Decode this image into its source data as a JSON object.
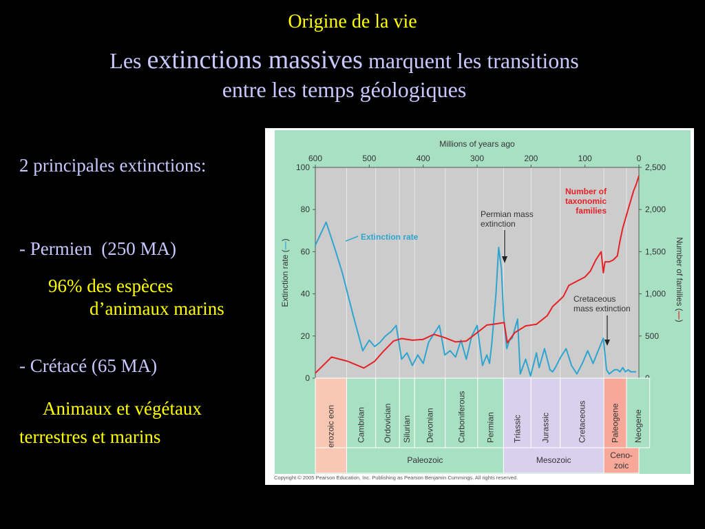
{
  "slide": {
    "kicker": "Origine de la vie",
    "title_part1": "Les ",
    "title_emph": "extinctions massives",
    "title_part2": " marquent les transitions",
    "title_line2": "entre les temps géologiques"
  },
  "left_text": {
    "heading": "2 principales extinctions:",
    "permian_line": "- Permien  (250 MA)",
    "permian_detail1": "96% des espèces",
    "permian_detail2": "d’animaux marins",
    "cretaceous_line": "- Crétacé (65 MA)",
    "cretaceous_detail1": "Animaux et végétaux",
    "cretaceous_detail2": "terrestres et marins"
  },
  "colors": {
    "slide_background": "#000000",
    "title_color": "#c8c8ff",
    "highlight_color": "#ffff00",
    "figure_green": "#a8e0c4",
    "plot_gray": "#cccccc",
    "proterozoic": "#f8c8b4",
    "paleozoic": "#a8e0c4",
    "mesozoic": "#d8d0ec",
    "cenozoic_paleogene": "#f8a898",
    "extinction_line": "#2da5cf",
    "families_line": "#e62025"
  },
  "chart_data": {
    "type": "line",
    "top_axis_label": "Millions of years ago",
    "left_axis_label": "Extinction rate (",
    "right_axis_label": "Number of families (",
    "axis_marker_symbol": "—",
    "axis_close": ")",
    "x_ticks": [
      "600",
      "500",
      "400",
      "300",
      "200",
      "100",
      "0"
    ],
    "x_tick_values": [
      600,
      500,
      400,
      300,
      200,
      100,
      0
    ],
    "x_range": [
      600,
      0
    ],
    "left_ticks": [
      "0",
      "20",
      "40",
      "60",
      "80",
      "100"
    ],
    "left_tick_values": [
      0,
      20,
      40,
      60,
      80,
      100
    ],
    "left_range": [
      0,
      100
    ],
    "right_ticks": [
      "0",
      "500",
      "1,000",
      "1,500",
      "2,000",
      "2,500"
    ],
    "right_tick_values": [
      0,
      500,
      1000,
      1500,
      2000,
      2500
    ],
    "right_range": [
      0,
      2500
    ],
    "series": [
      {
        "name": "Extinction rate",
        "axis": "left",
        "x": [
          600,
          580,
          562,
          550,
          530,
          512,
          500,
          490,
          480,
          470,
          460,
          450,
          440,
          430,
          420,
          410,
          400,
          390,
          380,
          370,
          360,
          350,
          340,
          330,
          320,
          310,
          300,
          290,
          282,
          277,
          273,
          265,
          260,
          255,
          251,
          245,
          240,
          235,
          225,
          220,
          210,
          201,
          198,
          195,
          190,
          185,
          175,
          165,
          160,
          155,
          145,
          135,
          125,
          115,
          105,
          95,
          85,
          66,
          60,
          55,
          50,
          45,
          40,
          35,
          30,
          25,
          20,
          15,
          10,
          5
        ],
        "values": [
          63,
          74,
          60,
          50,
          30,
          13,
          18,
          15,
          17,
          20,
          22,
          25,
          9,
          12,
          6,
          11,
          7,
          17,
          21,
          25,
          11,
          13,
          10,
          18,
          9,
          20,
          25,
          6,
          11,
          7,
          16,
          40,
          62,
          52,
          30,
          14,
          18,
          19,
          28,
          2,
          9,
          1,
          4,
          7,
          12,
          5,
          14,
          4,
          3,
          5,
          10,
          14,
          6,
          2,
          7,
          13,
          7,
          19,
          4,
          2,
          3,
          4,
          4,
          3,
          5,
          3,
          4,
          3,
          3,
          3
        ]
      },
      {
        "name": "Number of taxonomic families",
        "axis": "right",
        "x": [
          600,
          570,
          540,
          510,
          490,
          475,
          455,
          440,
          420,
          400,
          380,
          360,
          340,
          320,
          300,
          282,
          270,
          250,
          244,
          230,
          210,
          190,
          170,
          160,
          148,
          140,
          130,
          115,
          100,
          90,
          80,
          70,
          66,
          63,
          55,
          48,
          40,
          35,
          30,
          25,
          20,
          10,
          5,
          0
        ],
        "values": [
          60,
          250,
          200,
          120,
          200,
          310,
          440,
          470,
          450,
          460,
          520,
          480,
          430,
          440,
          540,
          630,
          640,
          660,
          420,
          540,
          620,
          640,
          740,
          850,
          920,
          970,
          1100,
          1150,
          1200,
          1270,
          1400,
          1500,
          1250,
          1380,
          1380,
          1400,
          1450,
          1630,
          1780,
          1890,
          2000,
          2220,
          2300,
          2400
        ]
      }
    ],
    "annotations": [
      {
        "text_lines": [
          "Number of",
          "taxonomic",
          "families"
        ],
        "color": "#e62025"
      },
      {
        "text_lines": [
          "Extinction rate"
        ],
        "color": "#2da5cf"
      },
      {
        "text_lines": [
          "Permian mass",
          "extinction"
        ],
        "points_to_x": 250
      },
      {
        "text_lines": [
          "Cretaceous",
          "mass extinction"
        ],
        "points_to_x": 65
      }
    ],
    "periods": [
      {
        "name": "Proterozoic eon",
        "start": 600,
        "end": 542,
        "color": "#f8c8b4"
      },
      {
        "name": "Cambrian",
        "start": 542,
        "end": 488,
        "color": "#a8e0c4"
      },
      {
        "name": "Ordovician",
        "start": 488,
        "end": 444,
        "color": "#a8e0c4"
      },
      {
        "name": "Silurian",
        "start": 444,
        "end": 416,
        "color": "#a8e0c4"
      },
      {
        "name": "Devonian",
        "start": 416,
        "end": 359,
        "color": "#a8e0c4"
      },
      {
        "name": "Carboniferous",
        "start": 359,
        "end": 299,
        "color": "#a8e0c4"
      },
      {
        "name": "Permian",
        "start": 299,
        "end": 251,
        "color": "#a8e0c4"
      },
      {
        "name": "Triassic",
        "start": 251,
        "end": 200,
        "color": "#d8d0ec"
      },
      {
        "name": "Jurassic",
        "start": 200,
        "end": 146,
        "color": "#d8d0ec"
      },
      {
        "name": "Cretaceous",
        "start": 146,
        "end": 65,
        "color": "#d8d0ec"
      },
      {
        "name": "Paleogene",
        "start": 65,
        "end": 23,
        "color": "#f8a898"
      },
      {
        "name": "Neogene",
        "start": 23,
        "end": -20,
        "color": "#a8e0c4"
      }
    ],
    "eras": [
      {
        "name": "Paleozoic",
        "start": 542,
        "end": 251,
        "color": "#a8e0c4"
      },
      {
        "name": "Mesozoic",
        "start": 251,
        "end": 65,
        "color": "#d8d0ec"
      },
      {
        "name": "Ceno-",
        "name2": "zoic",
        "start": 65,
        "end": 0,
        "color": "#f8a898"
      }
    ],
    "copyright": "Copyright © 2005 Pearson Education, Inc. Publishing as Pearson Benjamin Cummings. All rights reserved."
  }
}
